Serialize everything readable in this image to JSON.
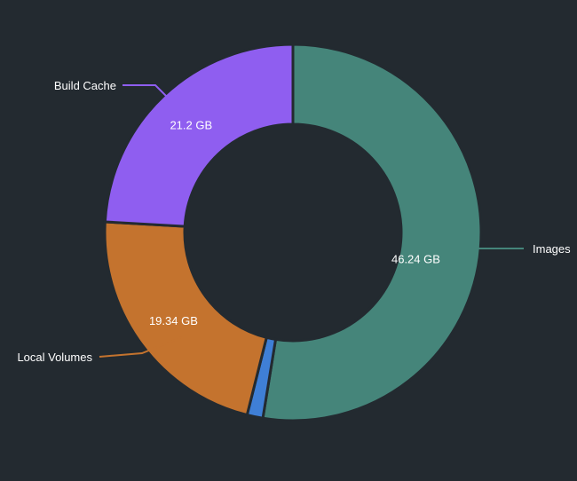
{
  "chart_data": {
    "type": "pie",
    "style": "donut",
    "title": "",
    "start_angle_deg": 0,
    "direction": "clockwise",
    "slices": [
      {
        "name": "Images",
        "value": 46.24,
        "value_label": "46.24 GB",
        "color": "#45857a",
        "callout": true,
        "show_value": true
      },
      {
        "name": "",
        "value": 1.2,
        "value_label": "",
        "color": "#3f7fd6",
        "callout": false,
        "show_value": false
      },
      {
        "name": "Local Volumes",
        "value": 19.34,
        "value_label": "19.34 GB",
        "color": "#c4732e",
        "callout": true,
        "show_value": true
      },
      {
        "name": "Build Cache",
        "value": 21.2,
        "value_label": "21.2 GB",
        "color": "#8f5ef0",
        "callout": true,
        "show_value": true
      }
    ]
  }
}
